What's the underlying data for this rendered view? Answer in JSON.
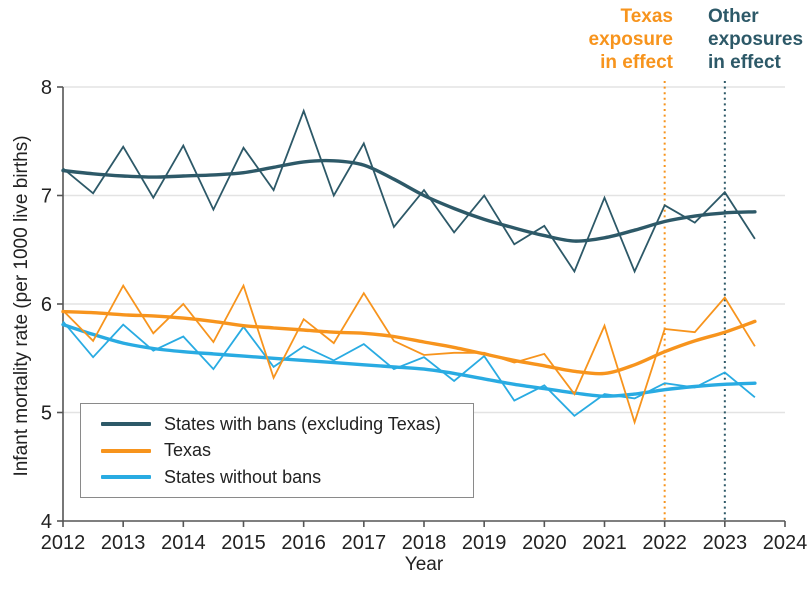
{
  "figure": {
    "y_axis_label": "Infant mortality rate (per 1000 live births)",
    "x_axis_label": "Year"
  },
  "colors": {
    "bans_dark_teal": "#2D5968",
    "texas_orange": "#F7941D",
    "no_bans_blue": "#29ABE2",
    "gridline": "#E3E3E3",
    "axis": "#555555",
    "tick_text": "#222222"
  },
  "annotations": [
    {
      "name": "texas-exposure",
      "lines": [
        "Texas",
        "exposure",
        "in effect"
      ],
      "color": "#F7941D",
      "x_year": 2022
    },
    {
      "name": "other-exposures",
      "lines": [
        "Other",
        "exposures",
        "in effect"
      ],
      "color": "#2D5968",
      "x_year": 2023
    }
  ],
  "legend": {
    "items": [
      {
        "label": "States with bans (excluding Texas)",
        "color": "#2D5968"
      },
      {
        "label": "Texas",
        "color": "#F7941D"
      },
      {
        "label": "States without bans",
        "color": "#29ABE2"
      }
    ]
  },
  "chart_data": {
    "type": "line",
    "title": "",
    "xlabel": "Year",
    "ylabel": "Infant mortality rate (per 1000 live births)",
    "xlim": [
      2012,
      2024
    ],
    "ylim": [
      4,
      8
    ],
    "x_ticks": [
      2012,
      2013,
      2014,
      2015,
      2016,
      2017,
      2018,
      2019,
      2020,
      2021,
      2022,
      2023,
      2024
    ],
    "y_ticks": [
      4,
      5,
      6,
      7,
      8
    ],
    "gridline_values": [
      5,
      6,
      7,
      8
    ],
    "grid": true,
    "legend_position": "lower-left-box",
    "x": [
      2012,
      2012.5,
      2013,
      2013.5,
      2014,
      2014.5,
      2015,
      2015.5,
      2016,
      2016.5,
      2017,
      2017.5,
      2018,
      2018.5,
      2019,
      2019.5,
      2020,
      2020.5,
      2021,
      2021.5,
      2022,
      2022.5,
      2023,
      2023.5
    ],
    "series": [
      {
        "name": "States with bans (excluding Texas)",
        "color": "#2D5968",
        "values": [
          7.25,
          7.02,
          7.45,
          6.98,
          7.46,
          6.87,
          7.44,
          7.05,
          7.78,
          7.0,
          7.48,
          6.71,
          7.05,
          6.66,
          7.0,
          6.55,
          6.72,
          6.3,
          6.98,
          6.3,
          6.91,
          6.75,
          7.03,
          6.6
        ],
        "trend": [
          7.23,
          7.2,
          7.18,
          7.17,
          7.18,
          7.19,
          7.21,
          7.26,
          7.31,
          7.32,
          7.28,
          7.15,
          7.0,
          6.88,
          6.78,
          6.7,
          6.63,
          6.58,
          6.61,
          6.68,
          6.76,
          6.81,
          6.84,
          6.85
        ]
      },
      {
        "name": "Texas",
        "color": "#F7941D",
        "values": [
          5.94,
          5.66,
          6.17,
          5.73,
          6.0,
          5.65,
          6.17,
          5.32,
          5.86,
          5.64,
          6.1,
          5.66,
          5.53,
          5.55,
          5.55,
          5.46,
          5.54,
          5.17,
          5.8,
          4.91,
          5.77,
          5.74,
          6.06,
          5.61
        ],
        "trend": [
          5.93,
          5.92,
          5.9,
          5.89,
          5.87,
          5.84,
          5.8,
          5.78,
          5.76,
          5.74,
          5.73,
          5.7,
          5.65,
          5.6,
          5.54,
          5.48,
          5.43,
          5.38,
          5.36,
          5.44,
          5.56,
          5.66,
          5.74,
          5.84
        ]
      },
      {
        "name": "States without bans",
        "color": "#29ABE2",
        "values": [
          5.84,
          5.51,
          5.81,
          5.57,
          5.7,
          5.4,
          5.79,
          5.42,
          5.61,
          5.48,
          5.63,
          5.4,
          5.51,
          5.29,
          5.52,
          5.11,
          5.25,
          4.97,
          5.17,
          5.13,
          5.27,
          5.23,
          5.37,
          5.14
        ],
        "trend": [
          5.81,
          5.72,
          5.64,
          5.59,
          5.56,
          5.54,
          5.52,
          5.5,
          5.48,
          5.46,
          5.44,
          5.42,
          5.4,
          5.36,
          5.31,
          5.26,
          5.22,
          5.18,
          5.15,
          5.17,
          5.21,
          5.24,
          5.26,
          5.27
        ]
      }
    ],
    "event_lines": [
      {
        "label": "Texas exposure in effect",
        "x": 2022,
        "color": "#F7941D"
      },
      {
        "label": "Other exposures in effect",
        "x": 2023,
        "color": "#2D5968"
      }
    ]
  }
}
